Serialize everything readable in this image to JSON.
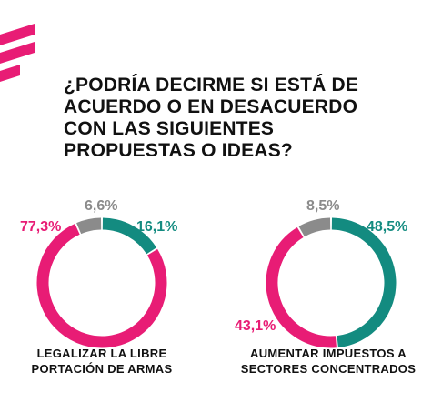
{
  "title_lines": [
    "¿PODRÍA DECIRME SI ESTÁ DE",
    "ACUERDO O EN DESACUERDO",
    "CON LAS SIGUIENTES",
    "PROPUESTAS O IDEAS?"
  ],
  "colors": {
    "agree": "#138b80",
    "disagree": "#e81c75",
    "no_answer": "#8b8b8b",
    "brand": "#e81c75"
  },
  "chart_data": [
    {
      "type": "pie",
      "style": "donut",
      "caption_lines": [
        "LEGALIZAR LA LIBRE",
        "PORTACIÓN DE ARMAS"
      ],
      "slices": [
        {
          "value": 16.1,
          "label": "16,1%",
          "color": "#138b80"
        },
        {
          "value": 77.3,
          "label": "77,3%",
          "color": "#e81c75"
        },
        {
          "value": 6.6,
          "label": "6,6%",
          "color": "#8b8b8b"
        }
      ]
    },
    {
      "type": "pie",
      "style": "donut",
      "caption_lines": [
        "AUMENTAR IMPUESTOS A",
        "SECTORES CONCENTRADOS"
      ],
      "slices": [
        {
          "value": 48.5,
          "label": "48,5%",
          "color": "#138b80"
        },
        {
          "value": 43.1,
          "label": "43,1%",
          "color": "#e81c75"
        },
        {
          "value": 8.5,
          "label": "8,5%",
          "color": "#8b8b8b"
        }
      ]
    }
  ]
}
